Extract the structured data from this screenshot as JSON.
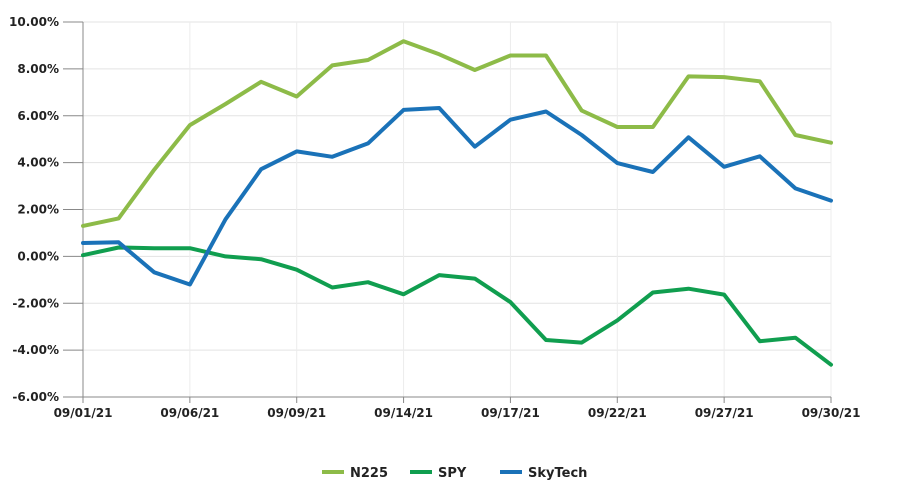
{
  "chart_data": {
    "type": "line",
    "title": "",
    "xlabel": "",
    "ylabel": "",
    "ylim": [
      -6,
      10
    ],
    "y_unit": "%",
    "yticks": [
      -6,
      -4,
      -2,
      0,
      2,
      4,
      6,
      8,
      10
    ],
    "ytick_labels": [
      "-6.00%",
      "-4.00%",
      "-2.00%",
      "0.00%",
      "2.00%",
      "4.00%",
      "6.00%",
      "8.00%",
      "10.00%"
    ],
    "grid": true,
    "legend_position": "bottom-center",
    "x": [
      "09/01/21",
      "09/02/21",
      "09/03/21",
      "09/06/21",
      "09/07/21",
      "09/08/21",
      "09/09/21",
      "09/10/21",
      "09/13/21",
      "09/14/21",
      "09/15/21",
      "09/16/21",
      "09/17/21",
      "09/20/21",
      "09/21/21",
      "09/22/21",
      "09/23/21",
      "09/24/21",
      "09/27/21",
      "09/28/21",
      "09/29/21",
      "09/30/21"
    ],
    "xtick_labels": [
      "09/01/21",
      "09/06/21",
      "09/09/21",
      "09/14/21",
      "09/17/21",
      "09/22/21",
      "09/27/21",
      "09/30/21"
    ],
    "series": [
      {
        "name": "N225",
        "color": "#8dbb48",
        "values": [
          1.3,
          1.62,
          3.7,
          5.6,
          6.5,
          7.45,
          6.82,
          8.15,
          8.38,
          9.18,
          8.62,
          7.95,
          8.57,
          8.57,
          6.22,
          5.52,
          5.52,
          7.68,
          7.65,
          7.47,
          5.18,
          4.85
        ]
      },
      {
        "name": "SPY",
        "color": "#109e4f",
        "values": [
          0.05,
          0.38,
          0.35,
          0.35,
          0.0,
          -0.12,
          -0.57,
          -1.33,
          -1.1,
          -1.62,
          -0.8,
          -0.95,
          -1.95,
          -3.57,
          -3.68,
          -2.73,
          -1.54,
          -1.38,
          -1.63,
          -3.62,
          -3.47,
          -4.62
        ]
      },
      {
        "name": "SkyTech",
        "color": "#1a72b8",
        "values": [
          0.57,
          0.6,
          -0.68,
          -1.2,
          1.58,
          3.72,
          4.48,
          4.25,
          4.82,
          6.25,
          6.33,
          4.68,
          5.83,
          6.18,
          5.18,
          3.98,
          3.6,
          5.08,
          3.82,
          4.27,
          2.9,
          2.38
        ]
      }
    ]
  }
}
